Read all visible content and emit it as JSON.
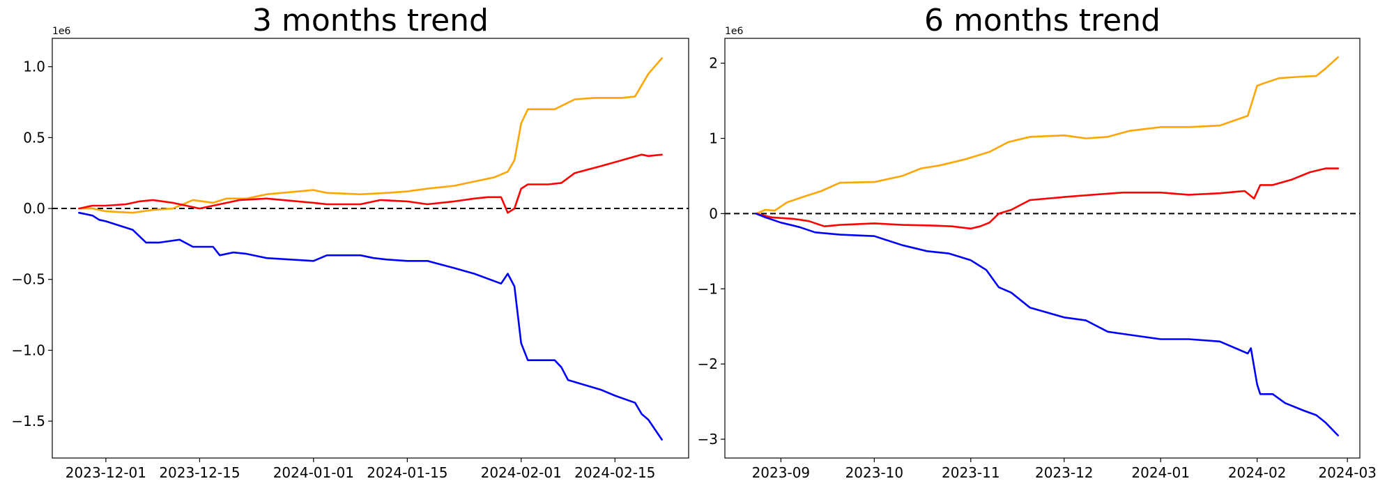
{
  "chart_data": [
    {
      "type": "line",
      "title": "3 months trend",
      "xlabel": "",
      "ylabel": "",
      "y_offset_text": "1e6",
      "xlim": [
        "2023-11-23",
        "2024-02-26"
      ],
      "ylim": [
        -1.76,
        1.2
      ],
      "x_ticks": [
        "2023-12-01",
        "2023-12-15",
        "2024-01-01",
        "2024-01-15",
        "2024-02-01",
        "2024-02-15"
      ],
      "y_ticks": [
        -1.5,
        -1.0,
        -0.5,
        0.0,
        0.5,
        1.0
      ],
      "y_tick_labels": [
        "−1.5",
        "−1.0",
        "−0.5",
        "0.0",
        "0.5",
        "1.0"
      ],
      "reference_line": {
        "y": 0,
        "style": "dashed",
        "color": "#000000"
      },
      "grid": false,
      "legend": "none",
      "series": [
        {
          "color": "#ffa500",
          "x": [
            "2023-11-27",
            "2023-11-29",
            "2023-12-01",
            "2023-12-05",
            "2023-12-08",
            "2023-12-11",
            "2023-12-14",
            "2023-12-17",
            "2023-12-19",
            "2023-12-22",
            "2023-12-25",
            "2024-01-01",
            "2024-01-03",
            "2024-01-08",
            "2024-01-12",
            "2024-01-15",
            "2024-01-18",
            "2024-01-22",
            "2024-01-25",
            "2024-01-28",
            "2024-01-30",
            "2024-01-31",
            "2024-02-01",
            "2024-02-02",
            "2024-02-06",
            "2024-02-09",
            "2024-02-12",
            "2024-02-15",
            "2024-02-16",
            "2024-02-18",
            "2024-02-20",
            "2024-02-22"
          ],
          "values": [
            0.0,
            0.0,
            -0.02,
            -0.03,
            -0.01,
            0.0,
            0.06,
            0.04,
            0.07,
            0.07,
            0.1,
            0.13,
            0.11,
            0.1,
            0.11,
            0.12,
            0.14,
            0.16,
            0.19,
            0.22,
            0.26,
            0.34,
            0.6,
            0.7,
            0.7,
            0.77,
            0.78,
            0.78,
            0.78,
            0.79,
            0.95,
            1.06
          ]
        },
        {
          "color": "#ff0000",
          "x": [
            "2023-11-27",
            "2023-11-29",
            "2023-12-01",
            "2023-12-04",
            "2023-12-06",
            "2023-12-08",
            "2023-12-11",
            "2023-12-13",
            "2023-12-15",
            "2023-12-18",
            "2023-12-21",
            "2023-12-25",
            "2024-01-01",
            "2024-01-03",
            "2024-01-08",
            "2024-01-11",
            "2024-01-15",
            "2024-01-18",
            "2024-01-22",
            "2024-01-25",
            "2024-01-27",
            "2024-01-29",
            "2024-01-30",
            "2024-01-31",
            "2024-02-01",
            "2024-02-02",
            "2024-02-05",
            "2024-02-07",
            "2024-02-09",
            "2024-02-13",
            "2024-02-16",
            "2024-02-19",
            "2024-02-20",
            "2024-02-22"
          ],
          "values": [
            0.0,
            0.02,
            0.02,
            0.03,
            0.05,
            0.06,
            0.04,
            0.02,
            0.0,
            0.03,
            0.06,
            0.07,
            0.04,
            0.03,
            0.03,
            0.06,
            0.05,
            0.03,
            0.05,
            0.07,
            0.08,
            0.08,
            -0.03,
            0.0,
            0.14,
            0.17,
            0.17,
            0.18,
            0.25,
            0.3,
            0.34,
            0.38,
            0.37,
            0.38
          ]
        },
        {
          "color": "#0000ff",
          "x": [
            "2023-11-27",
            "2023-11-29",
            "2023-11-30",
            "2023-12-01",
            "2023-12-05",
            "2023-12-07",
            "2023-12-09",
            "2023-12-12",
            "2023-12-14",
            "2023-12-17",
            "2023-12-18",
            "2023-12-20",
            "2023-12-22",
            "2023-12-25",
            "2024-01-01",
            "2024-01-03",
            "2024-01-08",
            "2024-01-10",
            "2024-01-12",
            "2024-01-15",
            "2024-01-18",
            "2024-01-22",
            "2024-01-25",
            "2024-01-29",
            "2024-01-30",
            "2024-01-31",
            "2024-02-01",
            "2024-02-02",
            "2024-02-05",
            "2024-02-06",
            "2024-02-07",
            "2024-02-08",
            "2024-02-13",
            "2024-02-15",
            "2024-02-18",
            "2024-02-19",
            "2024-02-20",
            "2024-02-22"
          ],
          "values": [
            -0.03,
            -0.05,
            -0.08,
            -0.09,
            -0.15,
            -0.24,
            -0.24,
            -0.22,
            -0.27,
            -0.27,
            -0.33,
            -0.31,
            -0.32,
            -0.35,
            -0.37,
            -0.33,
            -0.33,
            -0.35,
            -0.36,
            -0.37,
            -0.37,
            -0.42,
            -0.46,
            -0.53,
            -0.46,
            -0.55,
            -0.95,
            -1.07,
            -1.07,
            -1.07,
            -1.12,
            -1.21,
            -1.28,
            -1.32,
            -1.37,
            -1.45,
            -1.49,
            -1.63
          ]
        }
      ]
    },
    {
      "type": "line",
      "title": "6 months trend",
      "xlabel": "",
      "ylabel": "",
      "y_offset_text": "1e6",
      "xlim": [
        "2023-08-14",
        "2024-03-05"
      ],
      "ylim": [
        -3.25,
        2.33
      ],
      "x_ticks": [
        "2023-09",
        "2023-10",
        "2023-11",
        "2023-12",
        "2024-01",
        "2024-02",
        "2024-03"
      ],
      "y_ticks": [
        -3,
        -2,
        -1,
        0,
        1,
        2
      ],
      "y_tick_labels": [
        "−3",
        "−2",
        "−1",
        "0",
        "1",
        "2"
      ],
      "reference_line": {
        "y": 0,
        "style": "dashed",
        "color": "#000000"
      },
      "grid": false,
      "legend": "none",
      "series": [
        {
          "color": "#ffa500",
          "x": [
            "2023-08-24",
            "2023-08-27",
            "2023-08-30",
            "2023-09-03",
            "2023-09-08",
            "2023-09-14",
            "2023-09-20",
            "2023-10-01",
            "2023-10-10",
            "2023-10-16",
            "2023-10-22",
            "2023-10-30",
            "2023-11-07",
            "2023-11-13",
            "2023-11-20",
            "2023-12-01",
            "2023-12-08",
            "2023-12-15",
            "2023-12-22",
            "2024-01-01",
            "2024-01-10",
            "2024-01-20",
            "2024-01-29",
            "2024-02-01",
            "2024-02-03",
            "2024-02-08",
            "2024-02-15",
            "2024-02-20",
            "2024-02-23",
            "2024-02-27"
          ],
          "values": [
            0.0,
            0.05,
            0.04,
            0.15,
            0.22,
            0.3,
            0.41,
            0.42,
            0.5,
            0.6,
            0.64,
            0.72,
            0.82,
            0.95,
            1.02,
            1.04,
            1.0,
            1.02,
            1.1,
            1.15,
            1.15,
            1.17,
            1.3,
            1.7,
            1.73,
            1.8,
            1.82,
            1.83,
            1.93,
            2.08
          ]
        },
        {
          "color": "#ff0000",
          "x": [
            "2023-08-24",
            "2023-08-29",
            "2023-09-05",
            "2023-09-10",
            "2023-09-15",
            "2023-09-20",
            "2023-10-01",
            "2023-10-10",
            "2023-10-20",
            "2023-10-26",
            "2023-11-01",
            "2023-11-04",
            "2023-11-07",
            "2023-11-10",
            "2023-11-14",
            "2023-11-20",
            "2023-12-01",
            "2023-12-10",
            "2023-12-20",
            "2024-01-01",
            "2024-01-10",
            "2024-01-20",
            "2024-01-28",
            "2024-01-31",
            "2024-02-02",
            "2024-02-06",
            "2024-02-12",
            "2024-02-18",
            "2024-02-23",
            "2024-02-27"
          ],
          "values": [
            0.0,
            -0.05,
            -0.07,
            -0.1,
            -0.17,
            -0.15,
            -0.13,
            -0.15,
            -0.16,
            -0.17,
            -0.2,
            -0.17,
            -0.12,
            0.0,
            0.05,
            0.18,
            0.22,
            0.25,
            0.28,
            0.28,
            0.25,
            0.27,
            0.3,
            0.2,
            0.38,
            0.38,
            0.45,
            0.55,
            0.6,
            0.6
          ]
        },
        {
          "color": "#0000ff",
          "x": [
            "2023-08-24",
            "2023-08-27",
            "2023-09-01",
            "2023-09-07",
            "2023-09-12",
            "2023-09-20",
            "2023-10-01",
            "2023-10-10",
            "2023-10-18",
            "2023-10-25",
            "2023-11-01",
            "2023-11-06",
            "2023-11-10",
            "2023-11-14",
            "2023-11-20",
            "2023-12-01",
            "2023-12-08",
            "2023-12-15",
            "2023-12-20",
            "2024-01-01",
            "2024-01-10",
            "2024-01-20",
            "2024-01-29",
            "2024-01-30",
            "2024-02-01",
            "2024-02-02",
            "2024-02-06",
            "2024-02-10",
            "2024-02-16",
            "2024-02-20",
            "2024-02-23",
            "2024-02-27"
          ],
          "values": [
            0.0,
            -0.05,
            -0.12,
            -0.18,
            -0.25,
            -0.28,
            -0.3,
            -0.42,
            -0.5,
            -0.53,
            -0.62,
            -0.75,
            -0.98,
            -1.05,
            -1.25,
            -1.38,
            -1.42,
            -1.57,
            -1.6,
            -1.67,
            -1.67,
            -1.7,
            -1.86,
            -1.79,
            -2.27,
            -2.4,
            -2.4,
            -2.52,
            -2.62,
            -2.68,
            -2.78,
            -2.95
          ]
        }
      ]
    }
  ]
}
